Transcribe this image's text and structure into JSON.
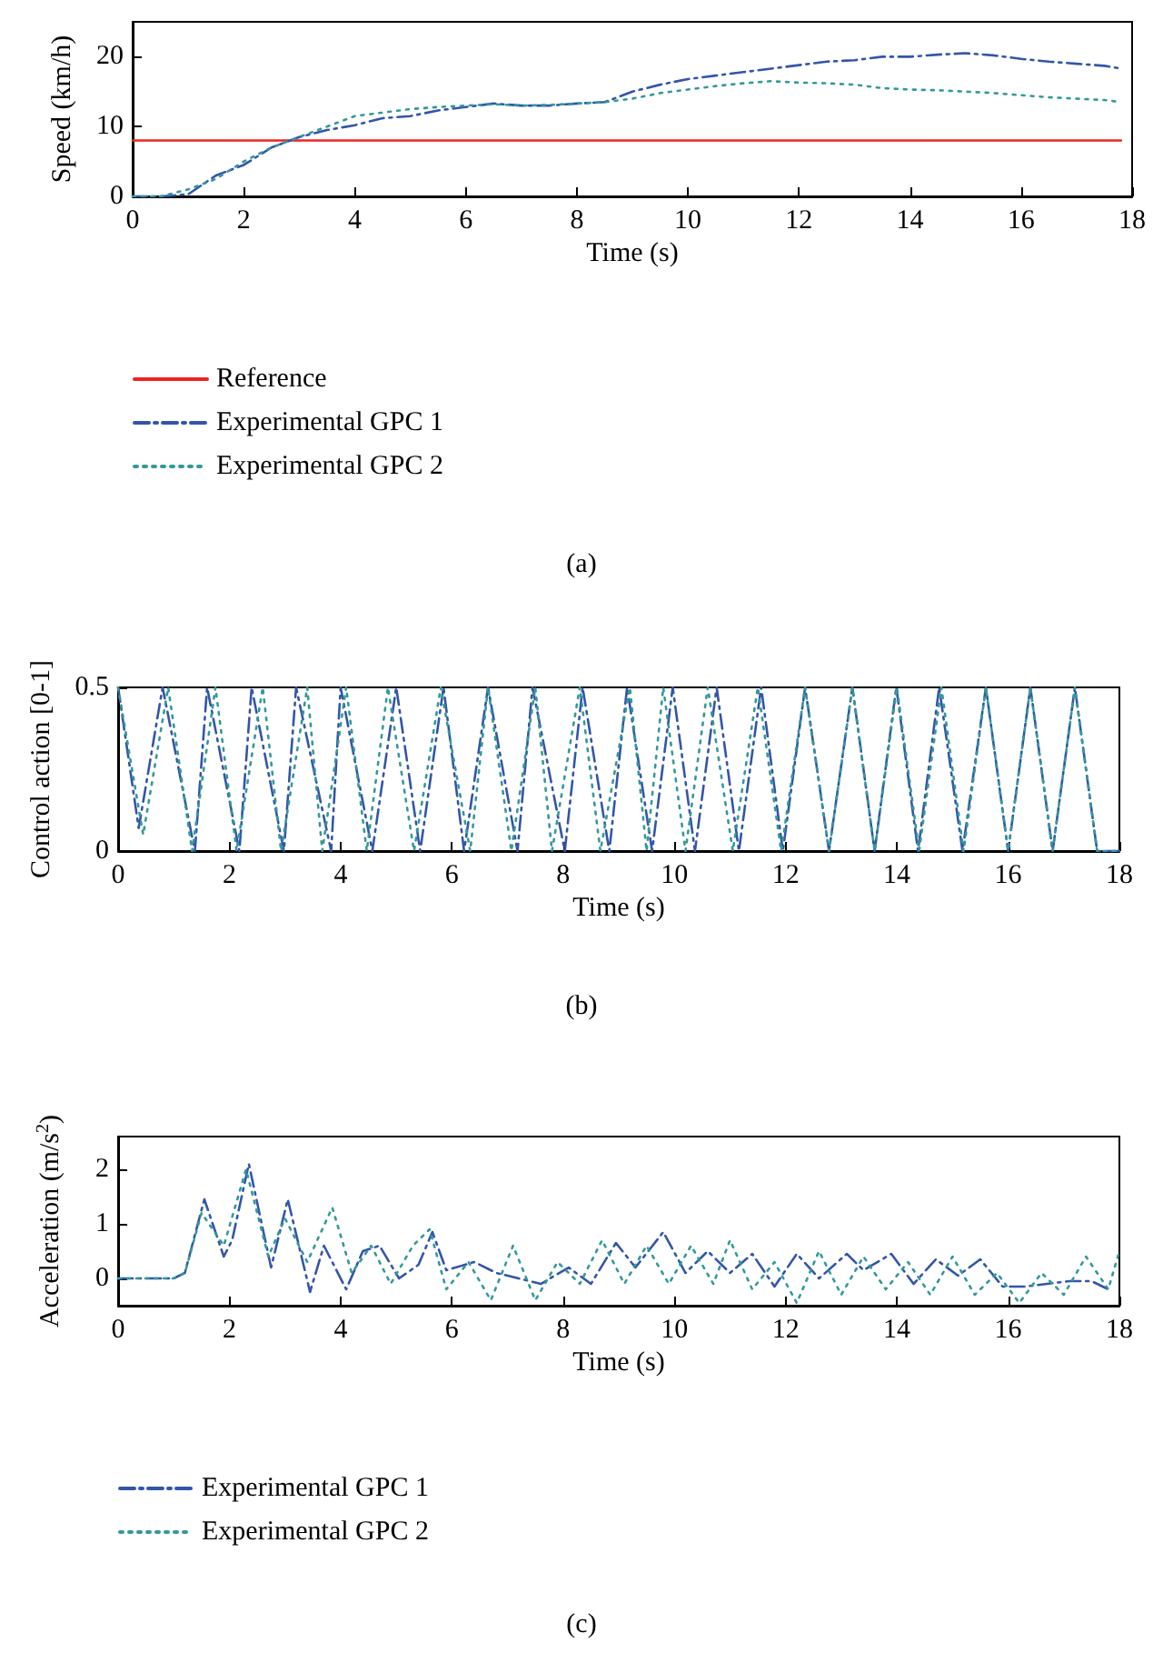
{
  "chart_data": [
    {
      "type": "line",
      "xlabel": "Time (s)",
      "ylabel": "Speed (km/h)",
      "xlim": [
        0,
        18
      ],
      "xticks": [
        0,
        2,
        4,
        6,
        8,
        10,
        12,
        14,
        16,
        18
      ],
      "ylim": [
        0,
        25
      ],
      "yticks": [
        0,
        10,
        20
      ],
      "grid": false,
      "legend": "bottom",
      "marker": "none",
      "annotations": [
        "(a)"
      ],
      "series": [
        {
          "name": "Reference",
          "color": "#ee2222",
          "line_style": "solid",
          "x": [
            0,
            17.8
          ],
          "values": [
            8,
            8
          ]
        },
        {
          "name": "Experimental GPC 1",
          "color": "#3355aa",
          "line_style": "dashdot",
          "x": [
            0,
            0.5,
            1,
            1.5,
            2,
            2.5,
            3,
            3.5,
            4,
            4.5,
            5,
            5.5,
            6,
            6.5,
            7,
            7.5,
            8,
            8.5,
            9,
            9.5,
            10,
            10.5,
            11,
            11.5,
            12,
            12.5,
            13,
            13.5,
            14,
            14.5,
            15,
            15.5,
            16,
            16.5,
            17,
            17.5,
            17.8
          ],
          "values": [
            0,
            0,
            0.3,
            3,
            4.5,
            7,
            8.5,
            9.5,
            10.2,
            11.2,
            11.5,
            12.3,
            12.8,
            13.3,
            13,
            13,
            13.3,
            13.5,
            15,
            16,
            16.8,
            17.3,
            17.8,
            18.3,
            18.8,
            19.3,
            19.5,
            20,
            20,
            20.3,
            20.5,
            20.2,
            19.7,
            19.3,
            19,
            18.7,
            18.3
          ]
        },
        {
          "name": "Experimental GPC 2",
          "color": "#339999",
          "line_style": "dotted",
          "x": [
            0,
            0.5,
            1,
            1.5,
            2,
            2.5,
            3,
            3.5,
            4,
            4.5,
            5,
            5.5,
            6,
            6.5,
            7,
            7.5,
            8,
            8.5,
            9,
            9.5,
            10,
            10.5,
            11,
            11.5,
            12,
            12.5,
            13,
            13.5,
            14,
            14.5,
            15,
            15.5,
            16,
            16.5,
            17,
            17.5,
            17.8
          ],
          "values": [
            0,
            0,
            1,
            2.5,
            5,
            7,
            8.5,
            10,
            11.5,
            12,
            12.5,
            12.8,
            13,
            13.2,
            13,
            13.1,
            13.3,
            13.5,
            14,
            14.8,
            15.3,
            15.8,
            16.2,
            16.5,
            16.3,
            16.2,
            16,
            15.5,
            15.3,
            15.2,
            15,
            14.8,
            14.5,
            14.2,
            14,
            13.8,
            13.5
          ]
        }
      ]
    },
    {
      "type": "line",
      "xlabel": "Time (s)",
      "ylabel": "Control action [0-1]",
      "xlim": [
        0,
        18
      ],
      "xticks": [
        0,
        2,
        4,
        6,
        8,
        10,
        12,
        14,
        16,
        18
      ],
      "ylim": [
        0,
        0.5
      ],
      "yticks": [
        0,
        0.5
      ],
      "grid": false,
      "marker": "none",
      "annotations": [
        "(b)"
      ],
      "series": [
        {
          "color": "#3355aa",
          "line_style": "dashdot",
          "x": [
            0,
            0.37,
            0.8,
            1.38,
            1.6,
            2.18,
            2.4,
            2.98,
            3.2,
            3.83,
            4.0,
            4.57,
            5.0,
            5.43,
            5.85,
            6.22,
            6.65,
            7.18,
            7.45,
            8.03,
            8.35,
            8.83,
            9.15,
            9.6,
            9.97,
            10.37,
            10.76,
            11.16,
            11.56,
            11.95,
            12.35,
            12.78,
            13.2,
            13.6,
            13.99,
            14.38,
            14.76,
            15.18,
            15.6,
            16.0,
            16.4,
            16.8,
            17.2,
            17.6,
            18
          ],
          "values": [
            0.5,
            0.07,
            0.5,
            0,
            0.5,
            0,
            0.5,
            0,
            0.5,
            0,
            0.5,
            0,
            0.5,
            0,
            0.5,
            0,
            0.5,
            0,
            0.5,
            0,
            0.5,
            0,
            0.5,
            0,
            0.5,
            0,
            0.5,
            0,
            0.5,
            0,
            0.5,
            0,
            0.5,
            0,
            0.5,
            0,
            0.5,
            0,
            0.5,
            0,
            0.5,
            0,
            0.5,
            0,
            0
          ]
        },
        {
          "color": "#339999",
          "line_style": "dotted",
          "x": [
            0,
            0.45,
            0.9,
            1.33,
            1.75,
            2.13,
            2.6,
            2.93,
            3.4,
            3.67,
            4.1,
            4.47,
            4.85,
            5.32,
            5.8,
            6.33,
            6.65,
            7.07,
            7.5,
            7.8,
            8.3,
            8.67,
            9.2,
            9.5,
            9.8,
            10.2,
            10.6,
            11.05,
            11.5,
            11.92,
            12.35,
            12.78,
            13.2,
            13.6,
            14.0,
            14.4,
            14.8,
            15.2,
            15.6,
            16.0,
            16.4,
            16.8,
            17.2,
            17.6,
            18
          ],
          "values": [
            0.5,
            0.05,
            0.5,
            0,
            0.5,
            0,
            0.5,
            0,
            0.5,
            0,
            0.5,
            0,
            0.5,
            0,
            0.5,
            0,
            0.5,
            0,
            0.5,
            0,
            0.5,
            0,
            0.5,
            0,
            0.5,
            0,
            0.5,
            0,
            0.5,
            0,
            0.5,
            0,
            0.5,
            0,
            0.5,
            0,
            0.5,
            0,
            0.5,
            0,
            0.5,
            0,
            0.5,
            0,
            0
          ]
        }
      ]
    },
    {
      "type": "line",
      "xlabel": "Time (s)",
      "ylabel": "Acceleration (m/s$^{2}$)",
      "xlim": [
        0,
        18
      ],
      "xticks": [
        0,
        2,
        4,
        6,
        8,
        10,
        12,
        14,
        16,
        18
      ],
      "ylim": [
        -0.5,
        2.6
      ],
      "yticks": [
        0,
        1,
        2
      ],
      "grid": false,
      "legend": "bottom",
      "marker": "none",
      "annotations": [
        "(c)"
      ],
      "series": [
        {
          "name": "Experimental GPC 1",
          "color": "#3355aa",
          "line_style": "dashdot",
          "x": [
            0,
            1,
            1.2,
            1.55,
            1.9,
            2.05,
            2.35,
            2.75,
            3.05,
            3.45,
            3.7,
            4.1,
            4.4,
            4.7,
            5.05,
            5.4,
            5.65,
            5.9,
            6.4,
            6.8,
            7.2,
            7.6,
            8.1,
            8.5,
            8.95,
            9.3,
            9.8,
            10.2,
            10.6,
            11.0,
            11.4,
            11.8,
            12.2,
            12.6,
            13.1,
            13.4,
            13.9,
            14.3,
            14.7,
            15.1,
            15.5,
            15.9,
            16.3,
            16.7,
            17.1,
            17.5,
            17.8
          ],
          "values": [
            0,
            0,
            0.1,
            1.45,
            0.4,
            0.7,
            2.1,
            0.2,
            1.45,
            -0.25,
            0.6,
            -0.2,
            0.5,
            0.6,
            0,
            0.25,
            0.85,
            0.15,
            0.3,
            0.1,
            0,
            -0.1,
            0.2,
            -0.1,
            0.65,
            0.2,
            0.85,
            0.1,
            0.5,
            0.1,
            0.45,
            -0.15,
            0.45,
            0,
            0.45,
            0.15,
            0.45,
            -0.1,
            0.35,
            0.05,
            0.35,
            -0.15,
            -0.15,
            -0.1,
            -0.05,
            -0.05,
            -0.2
          ]
        },
        {
          "name": "Experimental GPC 2",
          "color": "#339999",
          "line_style": "dotted",
          "x": [
            0,
            1,
            1.2,
            1.5,
            1.9,
            2.3,
            2.7,
            3.0,
            3.4,
            3.85,
            4.2,
            4.55,
            4.9,
            5.3,
            5.6,
            5.9,
            6.3,
            6.7,
            7.1,
            7.5,
            7.9,
            8.3,
            8.7,
            9.1,
            9.5,
            9.9,
            10.3,
            10.7,
            11.0,
            11.4,
            11.8,
            12.2,
            12.6,
            13.0,
            13.4,
            13.8,
            14.2,
            14.6,
            15.0,
            15.4,
            15.8,
            16.2,
            16.6,
            17.0,
            17.4,
            17.8,
            18
          ],
          "values": [
            0,
            0,
            0.1,
            1.2,
            0.6,
            2.0,
            0.4,
            1.1,
            0.3,
            1.3,
            0.1,
            0.6,
            -0.1,
            0.6,
            0.9,
            -0.2,
            0.3,
            -0.4,
            0.6,
            -0.4,
            0.3,
            -0.1,
            0.7,
            -0.1,
            0.6,
            -0.1,
            0.6,
            -0.1,
            0.7,
            -0.2,
            0.3,
            -0.45,
            0.5,
            -0.3,
            0.4,
            -0.2,
            0.3,
            -0.3,
            0.4,
            -0.3,
            0.1,
            -0.45,
            0.1,
            -0.3,
            0.4,
            -0.2,
            0.5
          ]
        }
      ]
    }
  ]
}
